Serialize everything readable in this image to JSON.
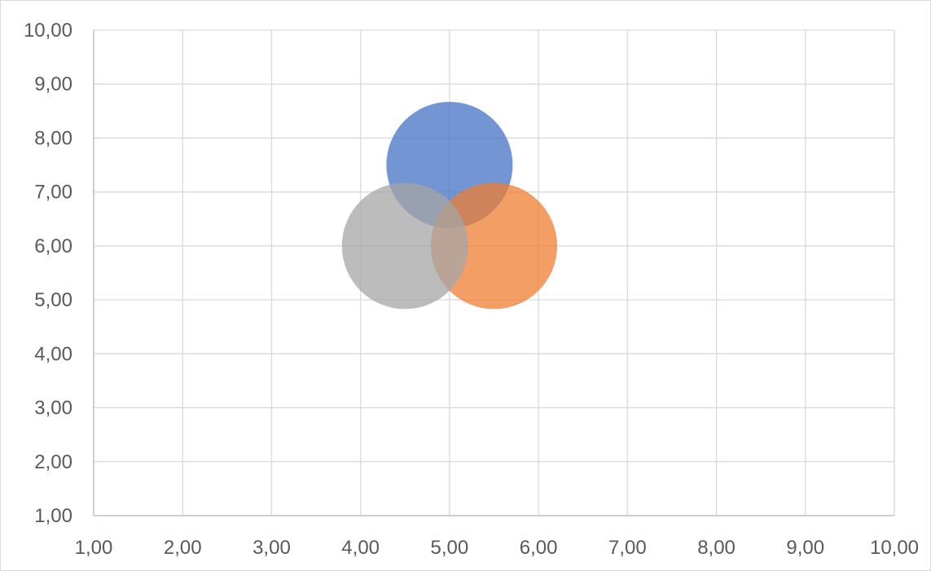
{
  "chart_data": {
    "type": "bubble",
    "title": "",
    "xlabel": "",
    "ylabel": "",
    "xlim": [
      1,
      10
    ],
    "ylim": [
      1,
      10
    ],
    "xticks": [
      "1,00",
      "2,00",
      "3,00",
      "4,00",
      "5,00",
      "6,00",
      "7,00",
      "8,00",
      "9,00",
      "10,00"
    ],
    "yticks": [
      "1,00",
      "2,00",
      "3,00",
      "4,00",
      "5,00",
      "6,00",
      "7,00",
      "8,00",
      "9,00",
      "10,00"
    ],
    "grid": true,
    "legend": "none",
    "series": [
      {
        "x": 5.0,
        "y": 7.5,
        "radius_x_units": 0.71,
        "color": "#4472c4"
      },
      {
        "x": 5.5,
        "y": 6.0,
        "radius_x_units": 0.71,
        "color": "#ed7d31"
      },
      {
        "x": 4.5,
        "y": 6.0,
        "radius_x_units": 0.71,
        "color": "#a5a5a5"
      }
    ]
  }
}
